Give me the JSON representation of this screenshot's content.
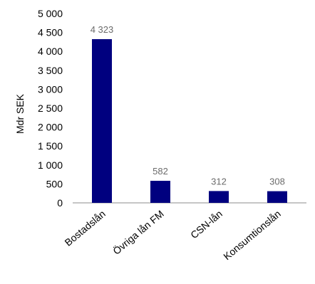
{
  "chart_data": {
    "type": "bar",
    "categories": [
      "Bostadslån",
      "Övriga lån FM",
      "CSN-lån",
      "Konsumtionslån"
    ],
    "values": [
      4323,
      582,
      312,
      308
    ],
    "data_labels": [
      "4 323",
      "582",
      "312",
      "308"
    ],
    "title": "",
    "xlabel": "",
    "ylabel": "Mdr SEK",
    "ylim": [
      0,
      5000
    ],
    "yticks": [
      0,
      500,
      1000,
      1500,
      2000,
      2500,
      3000,
      3500,
      4000,
      4500,
      5000
    ],
    "ytick_labels": [
      "0",
      "500",
      "1 000",
      "1 500",
      "2 000",
      "2 500",
      "3 000",
      "3 500",
      "4 000",
      "4 500",
      "5 000"
    ],
    "grid": false,
    "legend": "none",
    "bar_color": "#00007f"
  }
}
